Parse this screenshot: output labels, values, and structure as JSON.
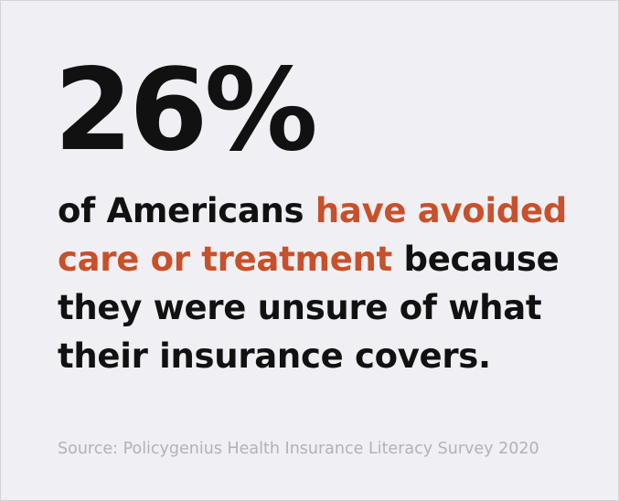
{
  "stat": "26%",
  "statement": [
    {
      "text": "of Americans",
      "color": "#111111"
    },
    {
      "text": "have avoided care or treatment",
      "color": "#c8502a"
    },
    {
      "text": "because they were unsure of what their insurance covers.",
      "color": "#111111"
    }
  ],
  "source": "Source: Policygenius Health Insurance Literacy Survey 2020"
}
